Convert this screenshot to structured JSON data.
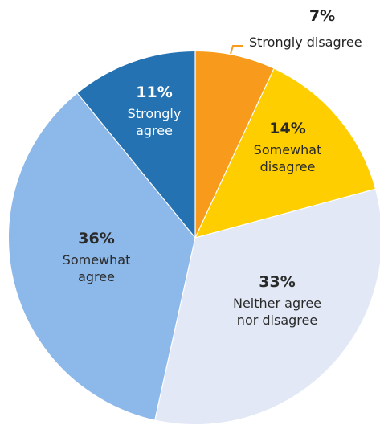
{
  "chart_data": {
    "type": "pie",
    "start_angle_deg": 0,
    "direction": "clockwise",
    "slices": [
      {
        "label_lines": [
          "Strongly disagree"
        ],
        "value": 7,
        "value_label": "7%",
        "color": "#f89b1c",
        "text_color": "#222222",
        "label_position": "outside"
      },
      {
        "label_lines": [
          "Somewhat",
          "disagree"
        ],
        "value": 14,
        "value_label": "14%",
        "color": "#fece00",
        "text_color": "#2a2a2a",
        "label_position": "inside"
      },
      {
        "label_lines": [
          "Neither agree",
          "nor disagree"
        ],
        "value": 33,
        "value_label": "33%",
        "color": "#e2e8f5",
        "text_color": "#2a2a2a",
        "label_position": "inside"
      },
      {
        "label_lines": [
          "Somewhat",
          "agree"
        ],
        "value": 36,
        "value_label": "36%",
        "color": "#8db8ea",
        "text_color": "#2a2a2a",
        "label_position": "inside"
      },
      {
        "label_lines": [
          "Strongly",
          "agree"
        ],
        "value": 11,
        "value_label": "11%",
        "color": "#2472b2",
        "text_color": "#ffffff",
        "label_position": "inside"
      }
    ],
    "leader_line_color": "#f89b1c"
  }
}
